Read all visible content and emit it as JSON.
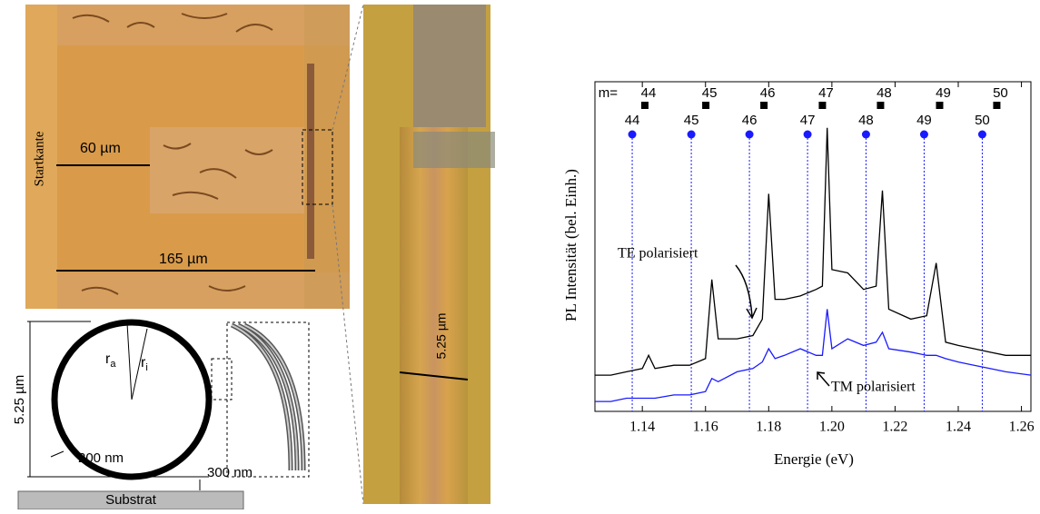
{
  "chart_data": {
    "type": "line",
    "x_label": "Energie (eV)",
    "y_label": "PL Intensität (bel. Einh.)",
    "x": [
      1.125,
      1.13,
      1.135,
      1.14,
      1.142,
      1.144,
      1.15,
      1.155,
      1.16,
      1.162,
      1.164,
      1.17,
      1.175,
      1.178,
      1.18,
      1.182,
      1.185,
      1.19,
      1.195,
      1.197,
      1.1985,
      1.2,
      1.205,
      1.21,
      1.214,
      1.216,
      1.218,
      1.225,
      1.23,
      1.233,
      1.236,
      1.24,
      1.245,
      1.25,
      1.255,
      1.263
    ],
    "series": [
      {
        "name": "TE polarisiert",
        "color": "#000000",
        "values": [
          11,
          11,
          12,
          13,
          17,
          13,
          14,
          14,
          16,
          40,
          22,
          22,
          23,
          28,
          66,
          34,
          34,
          35,
          37,
          38,
          86,
          43,
          42,
          37,
          38,
          67,
          31,
          28,
          29,
          45,
          21,
          20,
          19,
          18,
          17,
          17
        ]
      },
      {
        "name": "TM polarisiert",
        "color": "#1a1aff",
        "values": [
          3,
          3,
          4,
          4,
          4,
          4,
          5,
          5,
          6,
          10,
          9,
          12,
          13,
          15,
          19,
          16,
          17,
          19,
          17,
          17,
          31,
          19,
          22,
          20,
          21,
          24,
          19,
          18,
          17,
          17,
          16,
          15,
          14,
          13,
          12,
          11
        ]
      }
    ],
    "xlim": [
      1.125,
      1.263
    ],
    "ylim": [
      0,
      100
    ],
    "xticks": [
      1.14,
      1.16,
      1.18,
      {
        "value": 1.2,
        "label": "1.20"
      },
      1.22,
      1.24,
      1.26
    ],
    "mode_prefix": "m=",
    "te_modes": {
      "numbers": [
        44,
        45,
        46,
        47,
        48,
        49,
        50
      ],
      "energies": [
        1.1408,
        1.1601,
        1.1785,
        1.197,
        1.2154,
        1.2341,
        1.2522
      ]
    },
    "tm_modes": {
      "numbers": [
        44,
        45,
        46,
        47,
        48,
        49,
        50
      ],
      "energies": [
        1.1368,
        1.1555,
        1.1739,
        1.1923,
        1.2108,
        1.2292,
        1.2476
      ]
    }
  },
  "panels": {
    "photo": {
      "edge": "Startkante",
      "short_scale": "60 µm",
      "long_scale": "165 µm"
    },
    "zoom": {
      "scale": "5.25 µm"
    },
    "schematic": {
      "height": "5.25 µm",
      "outer_radius": "r",
      "outer_sub": "a",
      "inner_radius": "r",
      "inner_sub": "i",
      "wall": "200 nm",
      "gap": "300 nm",
      "substrate": "Substrat"
    }
  }
}
